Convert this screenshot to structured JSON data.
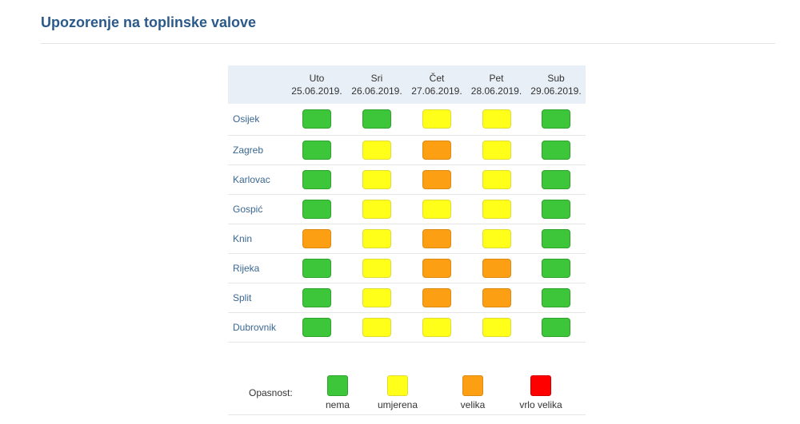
{
  "page": {
    "title": "Upozorenje na toplinske valove"
  },
  "table": {
    "days": [
      {
        "name": "Uto",
        "date": "25.06.2019."
      },
      {
        "name": "Sri",
        "date": "26.06.2019."
      },
      {
        "name": "Čet",
        "date": "27.06.2019."
      },
      {
        "name": "Pet",
        "date": "28.06.2019."
      },
      {
        "name": "Sub",
        "date": "29.06.2019."
      }
    ],
    "rows": [
      {
        "city": "Osijek",
        "levels": [
          "nema",
          "nema",
          "umjerena",
          "umjerena",
          "nema"
        ]
      },
      {
        "city": "Zagreb",
        "levels": [
          "nema",
          "umjerena",
          "velika",
          "umjerena",
          "nema"
        ]
      },
      {
        "city": "Karlovac",
        "levels": [
          "nema",
          "umjerena",
          "velika",
          "umjerena",
          "nema"
        ]
      },
      {
        "city": "Gospić",
        "levels": [
          "nema",
          "umjerena",
          "umjerena",
          "umjerena",
          "nema"
        ]
      },
      {
        "city": "Knin",
        "levels": [
          "velika",
          "umjerena",
          "velika",
          "umjerena",
          "nema"
        ]
      },
      {
        "city": "Rijeka",
        "levels": [
          "nema",
          "umjerena",
          "velika",
          "velika",
          "nema"
        ]
      },
      {
        "city": "Split",
        "levels": [
          "nema",
          "umjerena",
          "velika",
          "velika",
          "nema"
        ]
      },
      {
        "city": "Dubrovnik",
        "levels": [
          "nema",
          "umjerena",
          "umjerena",
          "umjerena",
          "nema"
        ]
      }
    ]
  },
  "legend": {
    "label": "Opasnost:",
    "items": [
      {
        "key": "nema",
        "label": "nema",
        "color": "#3ec63b"
      },
      {
        "key": "umjerena",
        "label": "umjerena",
        "color": "#ffff1a"
      },
      {
        "key": "velika",
        "label": "velika",
        "color": "#fc9f13"
      },
      {
        "key": "vrlo-velika",
        "label": "vrlo velika",
        "color": "#ff0000"
      }
    ]
  }
}
